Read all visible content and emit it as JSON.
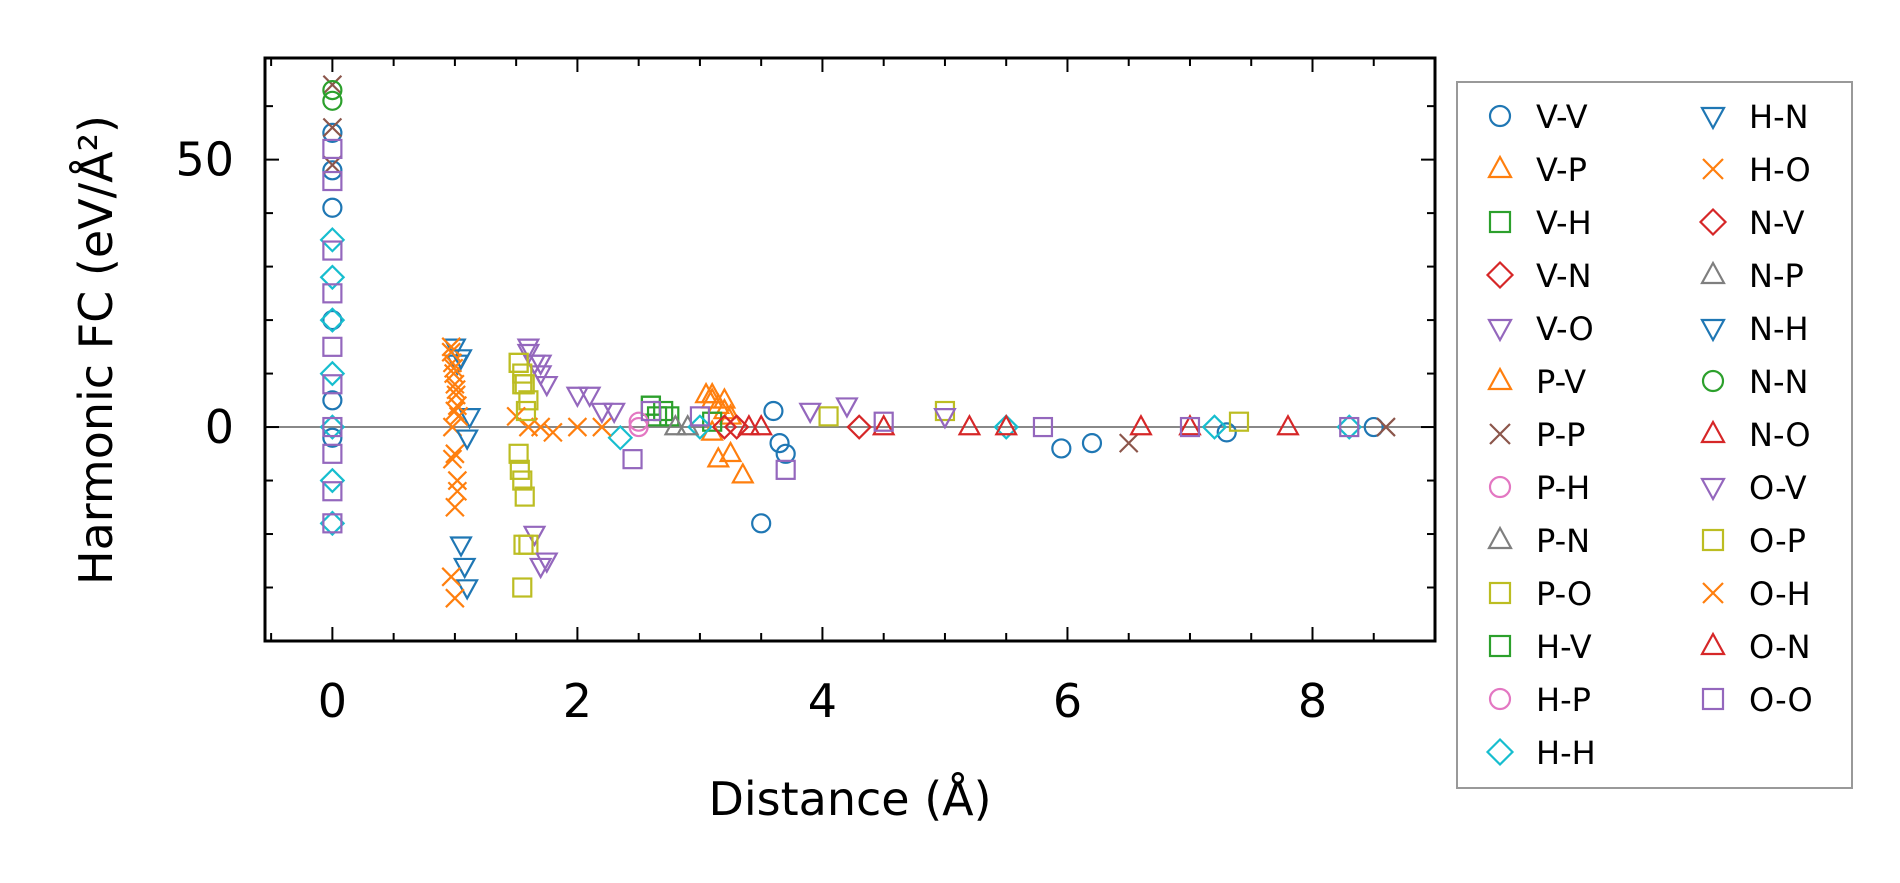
{
  "chart_data": {
    "type": "scatter",
    "xlabel": "Distance (Å)",
    "ylabel": "Harmonic FC (eV/Å²)",
    "xlim": [
      -0.55,
      9.0
    ],
    "ylim": [
      -40,
      69
    ],
    "xticks": [
      0,
      2,
      4,
      6,
      8
    ],
    "xtick_labels": [
      "0",
      "2",
      "4",
      "6",
      "8"
    ],
    "yticks": [
      0,
      50
    ],
    "ytick_labels": [
      "0",
      "50"
    ],
    "zero_line": true,
    "grid": false,
    "legend_position": "right, outside plot",
    "legend_columns": 2,
    "series": [
      {
        "name": "V-V",
        "marker": "circle",
        "color": "#1f77b4",
        "x": [
          0,
          0,
          0,
          0,
          0,
          0,
          3.5,
          3.6,
          3.65,
          3.7,
          5.95,
          6.2,
          7.3,
          8.5
        ],
        "y": [
          55,
          48,
          41,
          20,
          5,
          -2,
          -18,
          3,
          -3,
          -5,
          -4,
          -3,
          -1,
          0
        ]
      },
      {
        "name": "V-P",
        "marker": "triangle-up",
        "color": "#ff7f0e",
        "x": [
          3.05,
          3.1,
          3.15,
          3.2,
          3.25,
          3.35,
          3.15,
          3.1
        ],
        "y": [
          6,
          5,
          4,
          3,
          2,
          -9,
          -6,
          -1
        ]
      },
      {
        "name": "V-H",
        "marker": "square",
        "color": "#2ca02c",
        "x": [
          2.6,
          2.7,
          2.75,
          3.1
        ],
        "y": [
          4,
          3,
          2,
          1
        ]
      },
      {
        "name": "V-N",
        "marker": "diamond",
        "color": "#d62728",
        "x": [
          3.2,
          4.3
        ],
        "y": [
          0,
          0
        ]
      },
      {
        "name": "V-O",
        "marker": "triangle-down",
        "color": "#9467bd",
        "x": [
          1.6,
          1.65,
          1.7,
          1.75,
          1.65,
          1.7,
          2.1,
          2.3
        ],
        "y": [
          14,
          12,
          10,
          8,
          -20,
          -26,
          6,
          3
        ]
      },
      {
        "name": "P-V",
        "marker": "triangle-up",
        "color": "#ff7f0e",
        "x": [
          3.1,
          3.2,
          3.25
        ],
        "y": [
          6,
          5,
          -5
        ]
      },
      {
        "name": "P-P",
        "marker": "x",
        "color": "#8c564b",
        "x": [
          0,
          0,
          0,
          6.5,
          8.6
        ],
        "y": [
          64,
          56,
          49,
          -3,
          0
        ]
      },
      {
        "name": "P-H",
        "marker": "circle",
        "color": "#e377c2",
        "x": [
          2.5
        ],
        "y": [
          0
        ]
      },
      {
        "name": "P-N",
        "marker": "triangle-up",
        "color": "#7f7f7f",
        "x": [
          2.8
        ],
        "y": [
          0
        ]
      },
      {
        "name": "P-O",
        "marker": "square",
        "color": "#bcbd22",
        "x": [
          1.52,
          1.55,
          1.57,
          1.6,
          1.52,
          1.55,
          1.57,
          1.55,
          1.6,
          4.05,
          5.0,
          7.4
        ],
        "y": [
          12,
          10,
          8,
          5,
          -5,
          -10,
          -13,
          -30,
          -22,
          2,
          3,
          1
        ]
      },
      {
        "name": "H-V",
        "marker": "square",
        "color": "#2ca02c",
        "x": [
          2.6,
          2.65
        ],
        "y": [
          4,
          2
        ]
      },
      {
        "name": "H-P",
        "marker": "circle",
        "color": "#e377c2",
        "x": [
          2.5
        ],
        "y": [
          1
        ]
      },
      {
        "name": "H-H",
        "marker": "diamond",
        "color": "#17becf",
        "x": [
          0,
          0,
          0,
          0,
          0,
          0,
          0,
          2.35,
          3.0,
          5.5,
          7.2,
          8.3
        ],
        "y": [
          35,
          28,
          20,
          10,
          0,
          -10,
          -18,
          -2,
          0,
          0,
          0,
          0
        ]
      },
      {
        "name": "H-N",
        "marker": "triangle-down",
        "color": "#1f77b4",
        "x": [
          1.0,
          1.02,
          1.05,
          1.08,
          1.1,
          1.12
        ],
        "y": [
          15,
          12,
          -22,
          -26,
          -30,
          2
        ]
      },
      {
        "name": "H-O",
        "marker": "x",
        "color": "#ff7f0e",
        "x": [
          0.97,
          0.98,
          0.99,
          1.0,
          1.01,
          1.02,
          1.03,
          0.98,
          1.0,
          1.02,
          1.0,
          0.97,
          1.5,
          1.6,
          1.7,
          1.8,
          2.0,
          2.2
        ],
        "y": [
          15,
          12,
          10,
          8,
          6,
          4,
          2,
          0,
          -5,
          -10,
          -15,
          -28,
          2,
          0,
          0,
          -1,
          0,
          0
        ]
      },
      {
        "name": "N-V",
        "marker": "diamond",
        "color": "#d62728",
        "x": [
          3.3
        ],
        "y": [
          0
        ]
      },
      {
        "name": "N-P",
        "marker": "triangle-up",
        "color": "#7f7f7f",
        "x": [
          2.9
        ],
        "y": [
          0
        ]
      },
      {
        "name": "N-H",
        "marker": "triangle-down",
        "color": "#1f77b4",
        "x": [
          1.05,
          1.1
        ],
        "y": [
          13,
          -2
        ]
      },
      {
        "name": "N-N",
        "marker": "circle",
        "color": "#2ca02c",
        "x": [
          0,
          0
        ],
        "y": [
          63,
          61
        ]
      },
      {
        "name": "N-O",
        "marker": "triangle-up",
        "color": "#d62728",
        "x": [
          3.4,
          4.5,
          5.5,
          6.6,
          7.8
        ],
        "y": [
          0,
          0,
          0,
          0,
          0
        ]
      },
      {
        "name": "O-V",
        "marker": "triangle-down",
        "color": "#9467bd",
        "x": [
          1.6,
          1.7,
          1.75,
          2.0,
          2.2,
          3.9,
          4.2,
          5.0
        ],
        "y": [
          15,
          12,
          -25,
          6,
          3,
          3,
          4,
          2
        ]
      },
      {
        "name": "O-P",
        "marker": "square",
        "color": "#bcbd22",
        "x": [
          1.52,
          1.55,
          1.58,
          1.53,
          1.56
        ],
        "y": [
          12,
          8,
          3,
          -8,
          -22
        ]
      },
      {
        "name": "O-H",
        "marker": "x",
        "color": "#ff7f0e",
        "x": [
          0.97,
          0.99,
          1.01,
          1.0,
          0.98,
          1.02,
          1.0
        ],
        "y": [
          14,
          11,
          7,
          3,
          -6,
          -12,
          -32
        ]
      },
      {
        "name": "O-N",
        "marker": "triangle-up",
        "color": "#d62728",
        "x": [
          3.5,
          5.2,
          7.0
        ],
        "y": [
          0,
          0,
          0
        ]
      },
      {
        "name": "O-O",
        "marker": "square",
        "color": "#9467bd",
        "x": [
          0,
          0,
          0,
          0,
          0,
          0,
          0,
          0,
          0,
          0,
          2.45,
          2.6,
          3.0,
          3.7,
          4.5,
          5.8,
          7.0,
          8.3
        ],
        "y": [
          52,
          46,
          33,
          25,
          15,
          8,
          0,
          -5,
          -12,
          -18,
          -6,
          3,
          2,
          -8,
          1,
          0,
          0,
          0
        ]
      }
    ]
  }
}
